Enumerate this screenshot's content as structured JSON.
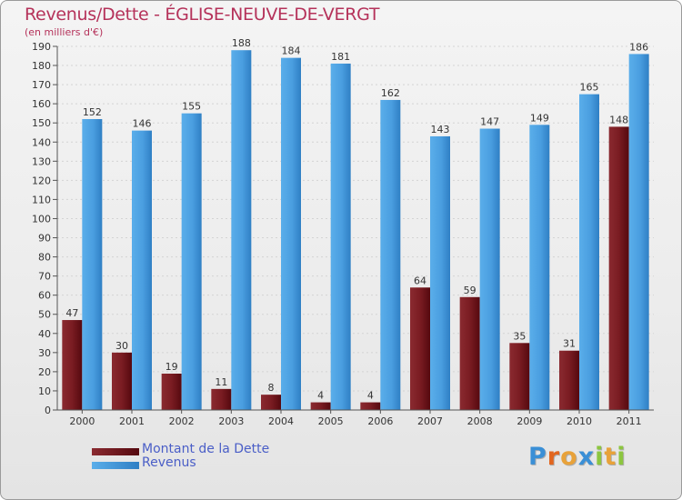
{
  "header": {
    "title": "Revenus/Dette - ÉGLISE-NEUVE-DE-VERGT",
    "subtitle": "(en milliers d'€)"
  },
  "chart_data": {
    "type": "bar",
    "title": "Revenus/Dette - ÉGLISE-NEUVE-DE-VERGT",
    "subtitle": "(en milliers d'€)",
    "categories": [
      "2000",
      "2001",
      "2002",
      "2003",
      "2004",
      "2005",
      "2006",
      "2007",
      "2008",
      "2009",
      "2010",
      "2011"
    ],
    "series": [
      {
        "name": "Montant de la Dette",
        "color": "#7a1c22",
        "values": [
          47,
          30,
          19,
          11,
          8,
          4,
          4,
          64,
          59,
          35,
          31,
          148
        ]
      },
      {
        "name": "Revenus",
        "color": "#4a9ee0",
        "values": [
          152,
          146,
          155,
          188,
          184,
          181,
          162,
          143,
          147,
          149,
          165,
          186
        ]
      }
    ],
    "ylim": [
      0,
      190
    ],
    "yticks": [
      0,
      10,
      20,
      30,
      40,
      50,
      60,
      70,
      80,
      90,
      100,
      110,
      120,
      130,
      140,
      150,
      160,
      170,
      180,
      190
    ],
    "grid": true,
    "legend": "bottom-left",
    "data_labels": true
  },
  "legend": {
    "items": [
      {
        "label": "Montant de la Dette",
        "color": "#7a1c22"
      },
      {
        "label": "Revenus",
        "color": "#4a9ee0"
      }
    ]
  },
  "brand": {
    "logo_text": "Proxiti",
    "letters": [
      {
        "ch": "P",
        "color": "#3a8fd6"
      },
      {
        "ch": "r",
        "color": "#e2661f"
      },
      {
        "ch": "o",
        "color": "#e8a23a"
      },
      {
        "ch": "x",
        "color": "#3a8fd6"
      },
      {
        "ch": "i",
        "color": "#8cc63f"
      },
      {
        "ch": "t",
        "color": "#e8a23a"
      },
      {
        "ch": "i",
        "color": "#8cc63f"
      }
    ]
  }
}
